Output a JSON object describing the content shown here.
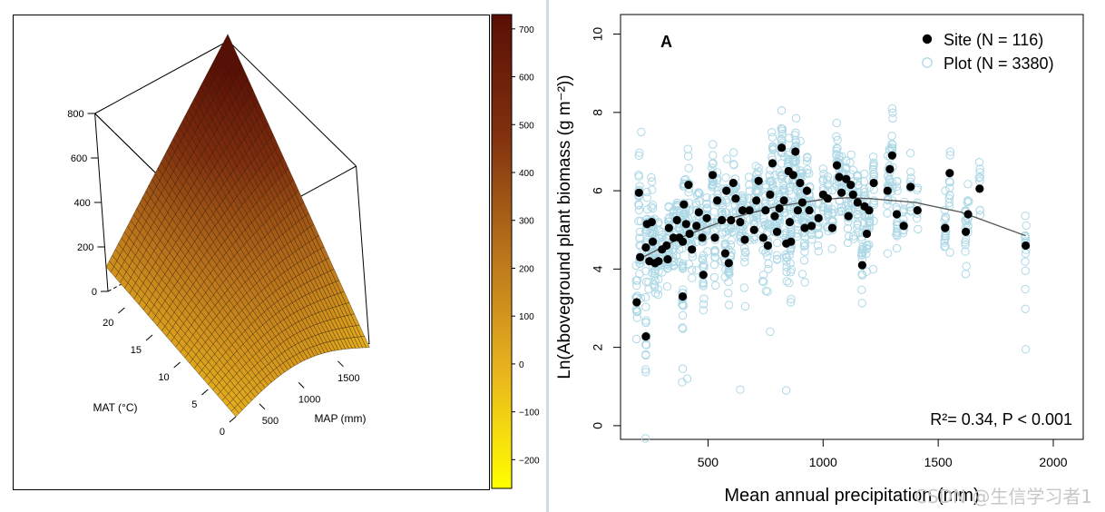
{
  "chart_data": [
    {
      "type": "surface3d",
      "xlabel": "MAP (mm)",
      "ylabel": "MAT (°C)",
      "x_ticks": [
        500,
        1000,
        1500
      ],
      "y_ticks": [
        0,
        5,
        10,
        15,
        20
      ],
      "z_ticks": [
        0,
        200,
        400,
        600,
        800
      ],
      "xlim": [
        200,
        1900
      ],
      "ylim": [
        0,
        23
      ],
      "zlim": [
        0,
        800
      ],
      "corner_values": [
        {
          "map": 200,
          "mat": 23,
          "biomass": 110
        },
        {
          "map": 200,
          "mat": 0,
          "biomass": 0
        },
        {
          "map": 1900,
          "mat": 23,
          "biomass": 830
        },
        {
          "map": 1900,
          "mat": 0,
          "biomass": 0
        }
      ],
      "peak": {
        "map": 1300,
        "mat": 0,
        "biomass": 80
      },
      "colorbar": {
        "ticks": [
          700,
          600,
          500,
          400,
          300,
          200,
          100,
          0,
          -100,
          -200
        ],
        "range": [
          -260,
          730
        ],
        "colors": [
          "#ffff00",
          "#e8b31e",
          "#b8721b",
          "#80300e",
          "#5a0f05"
        ]
      },
      "colors": {
        "frame": "#000000"
      }
    },
    {
      "type": "scatter",
      "panel_label": "A",
      "xlabel": "Mean annual precipitation (mm)",
      "ylabel": "Ln(Aboveground plant biomass (g m⁻²))",
      "x_ticks": [
        500,
        1000,
        1500,
        2000
      ],
      "y_ticks": [
        0,
        2,
        4,
        6,
        8,
        10
      ],
      "xlim": [
        120,
        2130
      ],
      "ylim": [
        -0.35,
        10.5
      ],
      "legend_position": "top-right",
      "annotation": "R²= 0.34,  P < 0.001",
      "series": [
        {
          "name": "Site (N = 116)",
          "marker": "filled-circle",
          "color": "#000000",
          "points": [
            [
              190,
              3.15
            ],
            [
              200,
              5.95
            ],
            [
              205,
              4.3
            ],
            [
              230,
              2.28
            ],
            [
              230,
              4.55
            ],
            [
              235,
              5.15
            ],
            [
              245,
              4.2
            ],
            [
              255,
              5.2
            ],
            [
              260,
              4.7
            ],
            [
              270,
              4.15
            ],
            [
              285,
              4.2
            ],
            [
              300,
              4.5
            ],
            [
              320,
              4.6
            ],
            [
              325,
              4.25
            ],
            [
              330,
              5.05
            ],
            [
              350,
              4.8
            ],
            [
              365,
              5.25
            ],
            [
              375,
              4.8
            ],
            [
              390,
              4.7
            ],
            [
              395,
              5.65
            ],
            [
              405,
              5.15
            ],
            [
              415,
              6.15
            ],
            [
              420,
              4.9
            ],
            [
              430,
              4.5
            ],
            [
              450,
              5.1
            ],
            [
              460,
              5.45
            ],
            [
              475,
              4.8
            ],
            [
              480,
              3.85
            ],
            [
              495,
              5.3
            ],
            [
              520,
              6.4
            ],
            [
              530,
              4.8
            ],
            [
              540,
              5.75
            ],
            [
              560,
              5.25
            ],
            [
              575,
              4.4
            ],
            [
              580,
              6.0
            ],
            [
              590,
              4.15
            ],
            [
              600,
              5.25
            ],
            [
              610,
              6.2
            ],
            [
              620,
              5.8
            ],
            [
              640,
              5.2
            ],
            [
              650,
              5.5
            ],
            [
              660,
              4.75
            ],
            [
              680,
              5.5
            ],
            [
              700,
              5.0
            ],
            [
              710,
              5.75
            ],
            [
              720,
              6.25
            ],
            [
              740,
              4.8
            ],
            [
              750,
              5.5
            ],
            [
              760,
              4.6
            ],
            [
              770,
              5.9
            ],
            [
              780,
              6.7
            ],
            [
              790,
              5.35
            ],
            [
              800,
              4.95
            ],
            [
              810,
              5.55
            ],
            [
              820,
              7.1
            ],
            [
              830,
              5.75
            ],
            [
              840,
              4.65
            ],
            [
              850,
              6.5
            ],
            [
              855,
              5.2
            ],
            [
              860,
              4.7
            ],
            [
              870,
              6.4
            ],
            [
              880,
              7.0
            ],
            [
              890,
              5.5
            ],
            [
              900,
              6.2
            ],
            [
              910,
              5.7
            ],
            [
              920,
              5.05
            ],
            [
              930,
              6.0
            ],
            [
              940,
              5.5
            ],
            [
              950,
              5.1
            ],
            [
              980,
              5.3
            ],
            [
              1000,
              5.9
            ],
            [
              1020,
              5.8
            ],
            [
              1040,
              5.05
            ],
            [
              1060,
              6.65
            ],
            [
              1070,
              6.35
            ],
            [
              1080,
              5.95
            ],
            [
              1100,
              6.3
            ],
            [
              1110,
              5.35
            ],
            [
              1120,
              6.15
            ],
            [
              1130,
              5.9
            ],
            [
              1150,
              5.7
            ],
            [
              1170,
              4.1
            ],
            [
              1180,
              5.6
            ],
            [
              1190,
              4.9
            ],
            [
              1200,
              5.5
            ],
            [
              1220,
              6.2
            ],
            [
              1280,
              6.0
            ],
            [
              1290,
              6.55
            ],
            [
              1300,
              6.9
            ],
            [
              1320,
              5.4
            ],
            [
              1350,
              5.1
            ],
            [
              1380,
              6.1
            ],
            [
              1410,
              5.5
            ],
            [
              1530,
              5.05
            ],
            [
              1550,
              6.45
            ],
            [
              1620,
              4.95
            ],
            [
              1630,
              5.4
            ],
            [
              1680,
              6.05
            ],
            [
              1880,
              4.6
            ],
            [
              390,
              3.3
            ]
          ]
        },
        {
          "name": "Plot (N = 3380)",
          "marker": "open-circle",
          "color": "#add8e6"
        }
      ],
      "fit_curve": {
        "type": "quadratic",
        "points": [
          [
            200,
            4.25
          ],
          [
            400,
            4.85
          ],
          [
            600,
            5.3
          ],
          [
            800,
            5.6
          ],
          [
            1000,
            5.78
          ],
          [
            1100,
            5.82
          ],
          [
            1200,
            5.8
          ],
          [
            1400,
            5.7
          ],
          [
            1600,
            5.45
          ],
          [
            1880,
            4.85
          ]
        ],
        "color": "#555555"
      }
    }
  ],
  "watermark": "CSDN @生信学习者1"
}
